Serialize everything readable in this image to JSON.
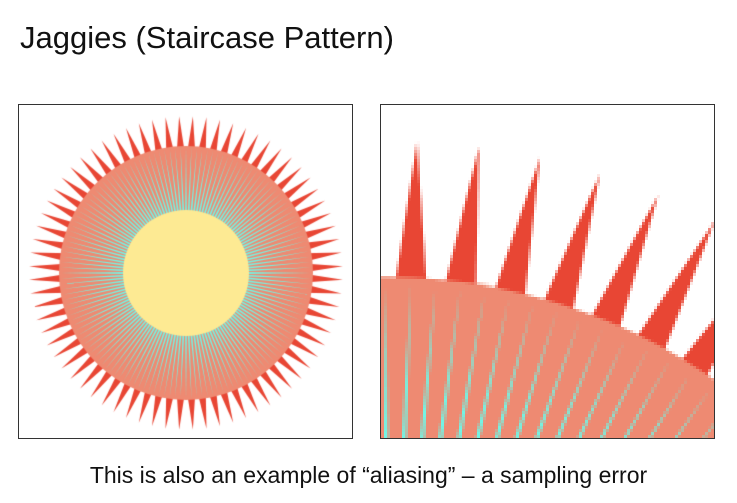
{
  "slide": {
    "title": "Jaggies (Staircase Pattern)",
    "caption": "This is also an example of “aliasing” – a sampling error"
  },
  "figures": {
    "left": "sunburst-antialiased",
    "right": "sunburst-zoomed-aliased"
  },
  "colors": {
    "spikes": "#E84634",
    "ring": "#EE8A72",
    "rays": "#74F4E4",
    "core": "#FDEA93"
  }
}
